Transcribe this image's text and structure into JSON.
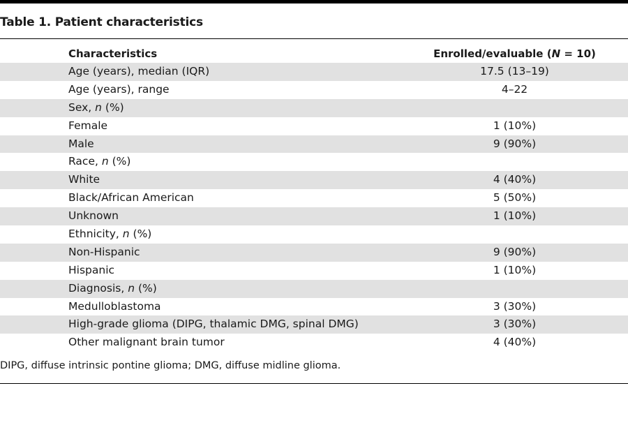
{
  "table": {
    "title": "Table 1. Patient characteristics",
    "header": {
      "characteristics": "Characteristics",
      "value_prefix": "Enrolled/evaluable (",
      "value_n": "N",
      "value_suffix": " = 10)"
    },
    "rows": [
      {
        "label": "Age (years), median (IQR)",
        "value": "17.5 (13–19)"
      },
      {
        "label": "Age (years), range",
        "value": "4–22"
      },
      {
        "label_prefix": "Sex, ",
        "label_italic": "n",
        "label_suffix": " (%)",
        "value": ""
      },
      {
        "label": "Female",
        "value": "1 (10%)"
      },
      {
        "label": "Male",
        "value": "9 (90%)"
      },
      {
        "label_prefix": "Race, ",
        "label_italic": "n",
        "label_suffix": " (%)",
        "value": ""
      },
      {
        "label": "White",
        "value": "4 (40%)"
      },
      {
        "label": "Black/African American",
        "value": "5 (50%)"
      },
      {
        "label": "Unknown",
        "value": "1 (10%)"
      },
      {
        "label_prefix": "Ethnicity, ",
        "label_italic": "n",
        "label_suffix": " (%)",
        "value": ""
      },
      {
        "label": "Non-Hispanic",
        "value": "9 (90%)"
      },
      {
        "label": "Hispanic",
        "value": "1 (10%)"
      },
      {
        "label_prefix": "Diagnosis, ",
        "label_italic": "n",
        "label_suffix": " (%)",
        "value": ""
      },
      {
        "label": "Medulloblastoma",
        "value": "3 (30%)"
      },
      {
        "label": "High-grade glioma (DIPG, thalamic DMG, spinal DMG)",
        "value": "3 (30%)"
      },
      {
        "label": "Other malignant brain tumor",
        "value": "4 (40%)"
      }
    ],
    "footnote": "DIPG, diffuse intrinsic pontine glioma; DMG, diffuse midline glioma."
  },
  "colors": {
    "shaded_row": "#e1e1e1",
    "rule": "#000000",
    "text": "#1a1a1a"
  }
}
